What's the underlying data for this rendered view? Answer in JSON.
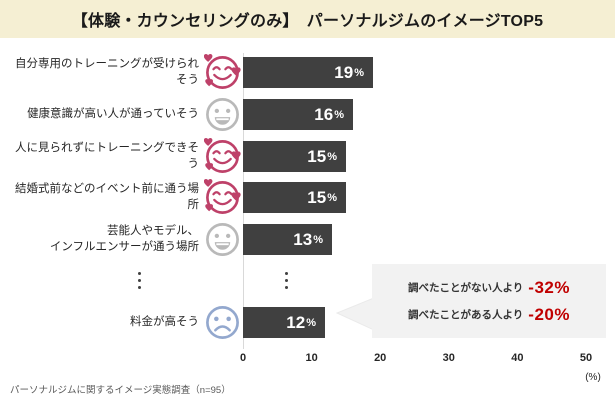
{
  "header": {
    "title": "【体験・カウンセリングのみ】　パーソナルジムのイメージTOP5"
  },
  "chart_data": {
    "type": "bar",
    "orientation": "horizontal",
    "title": "【体験・カウンセリングのみ】　パーソナルジムのイメージTOP5",
    "categories": [
      "自分専用のトレーニングが受けられそう",
      "健康意識が高い人が通っていそう",
      "人に見られずにトレーニングできそう",
      "結婚式前などのイベント前に通う場所",
      "芸能人やモデル、\nインフルエンサーが通う場所",
      "料金が高そう"
    ],
    "values": [
      19,
      16,
      15,
      15,
      13,
      12
    ],
    "unit": "%",
    "icons": [
      "smiling-face-with-hearts-icon",
      "neutral-face-icon",
      "smiling-face-with-hearts-icon",
      "smiling-face-with-hearts-icon",
      "neutral-face-icon",
      "sad-face-icon"
    ],
    "row_gap_ellipsis": "⋮",
    "x_ticks": [
      "0",
      "10",
      "20",
      "30",
      "40",
      "50"
    ],
    "x_axis_unit": "(%)",
    "xlim": [
      0,
      50
    ],
    "grid": false,
    "legend": false,
    "annotation": {
      "target_category": "料金が高そう",
      "lines": [
        {
          "label": "調べたことがない人より",
          "value": "-32%"
        },
        {
          "label": "調べたことがある人より",
          "value": "-20%"
        }
      ]
    }
  },
  "footer": {
    "source": "パーソナルジムに関するイメージ実態調査（n=95）"
  },
  "colors": {
    "header_bg": "#F5EFD3",
    "bar": "#404040",
    "positive_icon": "#BE4169",
    "neutral_icon": "#B9B9B9",
    "negative_icon": "#93A8CE",
    "annotation_value": "#C00000",
    "callout_bg": "#F2F2F2",
    "axis_line": "#D9D9D9"
  }
}
